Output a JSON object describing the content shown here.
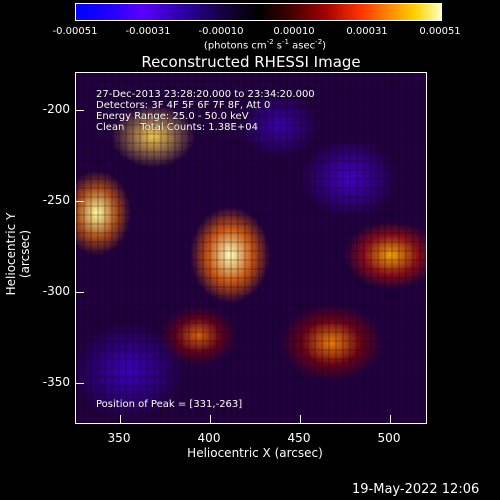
{
  "colorbar": {
    "tick_labels": [
      "-0.00051",
      "-0.00031",
      "-0.00010",
      "0.00010",
      "0.00031",
      "0.00051"
    ],
    "unit_prefix": "(photons cm",
    "unit_sup1": "-2",
    "unit_mid": " s",
    "unit_sup2": "-1",
    "unit_mid2": " asec",
    "unit_sup3": "-2",
    "unit_suffix": ")"
  },
  "plot": {
    "title": "Reconstructed RHESSI Image",
    "info_lines": [
      "27-Dec-2013 23:28:20.000 to 23:34:20.000",
      "Detectors: 3F 4F 5F 6F 7F 8F, Att 0",
      "Energy Range: 25.0 - 50.0 keV",
      "Clean     Total Counts: 1.38E+04"
    ],
    "peak_text": "Position of Peak = [331,-263]",
    "x_axis_label": "Heliocentric X (arcsec)",
    "y_axis_label": "Heliocentric Y (arcsec)",
    "x_ticks": [
      "350",
      "400",
      "450",
      "500"
    ],
    "y_ticks": [
      "-200",
      "-250",
      "-300",
      "-350"
    ]
  },
  "footer": {
    "date": "19-May-2022 12:06"
  }
}
